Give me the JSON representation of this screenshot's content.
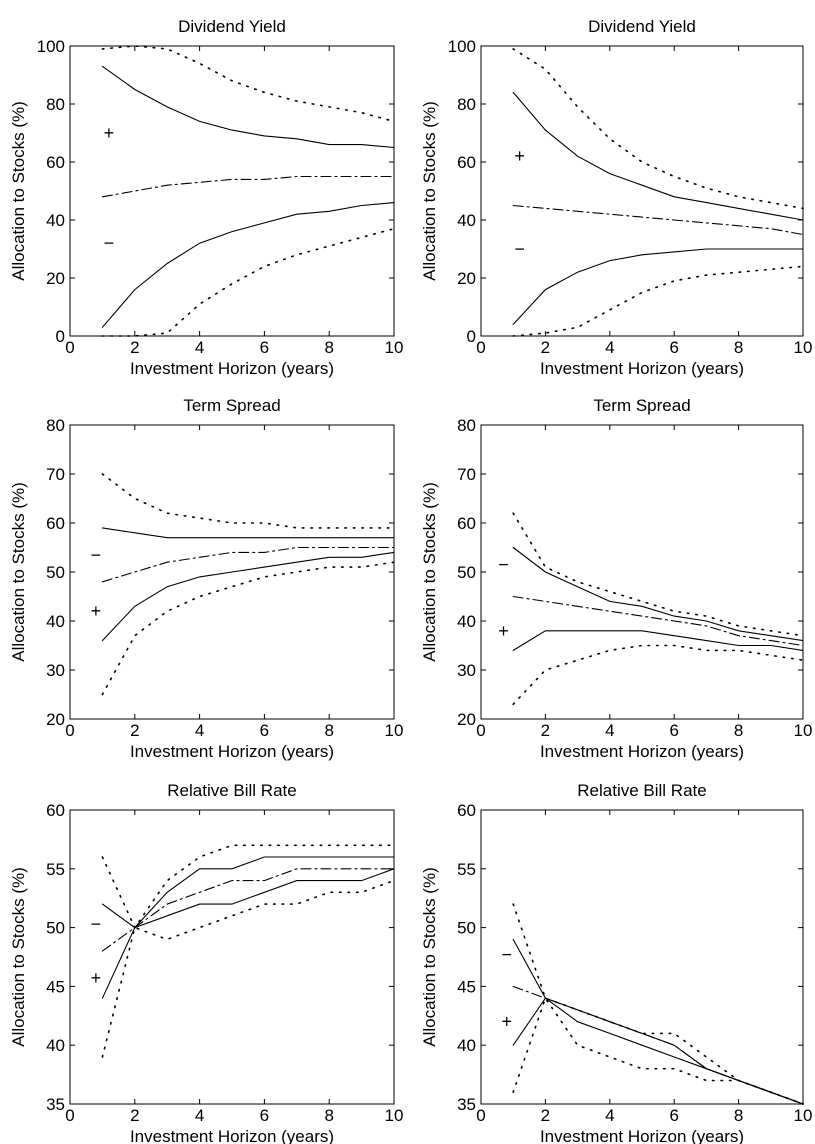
{
  "chart_data": [
    {
      "type": "line",
      "title": "Dividend Yield",
      "xlabel": "Investment Horizon (years)",
      "ylabel": "Allocation to Stocks (%)",
      "xlim": [
        0,
        10
      ],
      "ylim": [
        0,
        100
      ],
      "xticks": [
        0,
        2,
        4,
        6,
        8,
        10
      ],
      "yticks": [
        0,
        20,
        40,
        60,
        80,
        100
      ],
      "x": [
        1,
        2,
        3,
        4,
        5,
        6,
        7,
        8,
        9,
        10
      ],
      "series": [
        {
          "style": "solid",
          "values": [
            93,
            85,
            79,
            74,
            71,
            69,
            68,
            66,
            66,
            65
          ]
        },
        {
          "style": "solid",
          "values": [
            3,
            16,
            25,
            32,
            36,
            39,
            42,
            43,
            45,
            46
          ]
        },
        {
          "style": "dashdot",
          "values": [
            48,
            50,
            52,
            53,
            54,
            54,
            55,
            55,
            55,
            55
          ]
        },
        {
          "style": "dotted",
          "values": [
            99,
            100,
            99,
            94,
            88,
            84,
            81,
            79,
            77,
            74
          ]
        },
        {
          "style": "dotted",
          "values": [
            0,
            0,
            1,
            11,
            18,
            24,
            28,
            31,
            34,
            37
          ]
        }
      ],
      "markers": [
        {
          "text": "+",
          "x": 1.2,
          "y": 70
        },
        {
          "text": "−",
          "x": 1.2,
          "y": 32
        }
      ]
    },
    {
      "type": "line",
      "title": "Dividend Yield",
      "xlabel": "Investment Horizon (years)",
      "ylabel": "Allocation to Stocks (%)",
      "xlim": [
        0,
        10
      ],
      "ylim": [
        0,
        100
      ],
      "xticks": [
        0,
        2,
        4,
        6,
        8,
        10
      ],
      "yticks": [
        0,
        20,
        40,
        60,
        80,
        100
      ],
      "x": [
        1,
        2,
        3,
        4,
        5,
        6,
        7,
        8,
        9,
        10
      ],
      "series": [
        {
          "style": "solid",
          "values": [
            84,
            71,
            62,
            56,
            52,
            48,
            46,
            44,
            42,
            40
          ]
        },
        {
          "style": "solid",
          "values": [
            4,
            16,
            22,
            26,
            28,
            29,
            30,
            30,
            30,
            30
          ]
        },
        {
          "style": "dashdot",
          "values": [
            45,
            44,
            43,
            42,
            41,
            40,
            39,
            38,
            37,
            35
          ]
        },
        {
          "style": "dotted",
          "values": [
            99,
            92,
            79,
            68,
            60,
            55,
            51,
            48,
            46,
            44
          ]
        },
        {
          "style": "dotted",
          "values": [
            0,
            1,
            3,
            9,
            15,
            19,
            21,
            22,
            23,
            24
          ]
        }
      ],
      "markers": [
        {
          "text": "+",
          "x": 1.2,
          "y": 62
        },
        {
          "text": "−",
          "x": 1.2,
          "y": 30
        }
      ]
    },
    {
      "type": "line",
      "title": "Term Spread",
      "xlabel": "Investment Horizon (years)",
      "ylabel": "Allocation to Stocks (%)",
      "xlim": [
        0,
        10
      ],
      "ylim": [
        20,
        80
      ],
      "xticks": [
        0,
        2,
        4,
        6,
        8,
        10
      ],
      "yticks": [
        20,
        30,
        40,
        50,
        60,
        70,
        80
      ],
      "x": [
        1,
        2,
        3,
        4,
        5,
        6,
        7,
        8,
        9,
        10
      ],
      "series": [
        {
          "style": "solid",
          "values": [
            59,
            58,
            57,
            57,
            57,
            57,
            57,
            57,
            57,
            57
          ]
        },
        {
          "style": "solid",
          "values": [
            36,
            43,
            47,
            49,
            50,
            51,
            52,
            53,
            53,
            54
          ]
        },
        {
          "style": "dashdot",
          "values": [
            48,
            50,
            52,
            53,
            54,
            54,
            55,
            55,
            55,
            55
          ]
        },
        {
          "style": "dotted",
          "values": [
            70,
            65,
            62,
            61,
            60,
            60,
            59,
            59,
            59,
            59
          ]
        },
        {
          "style": "dotted",
          "values": [
            25,
            37,
            42,
            45,
            47,
            49,
            50,
            51,
            51,
            52
          ]
        }
      ],
      "markers": [
        {
          "text": "−",
          "x": 0.8,
          "y": 53.5
        },
        {
          "text": "+",
          "x": 0.8,
          "y": 42
        }
      ]
    },
    {
      "type": "line",
      "title": "Term Spread",
      "xlabel": "Investment Horizon (years)",
      "ylabel": "Allocation to Stocks (%)",
      "xlim": [
        0,
        10
      ],
      "ylim": [
        20,
        80
      ],
      "xticks": [
        0,
        2,
        4,
        6,
        8,
        10
      ],
      "yticks": [
        20,
        30,
        40,
        50,
        60,
        70,
        80
      ],
      "x": [
        1,
        2,
        3,
        4,
        5,
        6,
        7,
        8,
        9,
        10
      ],
      "series": [
        {
          "style": "solid",
          "values": [
            55,
            50,
            47,
            44,
            43,
            41,
            40,
            38,
            37,
            36
          ]
        },
        {
          "style": "solid",
          "values": [
            34,
            38,
            38,
            38,
            38,
            37,
            36,
            35,
            35,
            34
          ]
        },
        {
          "style": "dashdot",
          "values": [
            45,
            44,
            43,
            42,
            41,
            40,
            39,
            37,
            36,
            35
          ]
        },
        {
          "style": "dotted",
          "values": [
            62,
            51,
            48,
            46,
            44,
            42,
            41,
            39,
            38,
            37
          ]
        },
        {
          "style": "dotted",
          "values": [
            23,
            30,
            32,
            34,
            35,
            35,
            34,
            34,
            33,
            32
          ]
        }
      ],
      "markers": [
        {
          "text": "−",
          "x": 0.7,
          "y": 51.5
        },
        {
          "text": "+",
          "x": 0.7,
          "y": 38
        }
      ]
    },
    {
      "type": "line",
      "title": "Relative Bill Rate",
      "xlabel": "Investment Horizon (years)",
      "ylabel": "Allocation to Stocks (%)",
      "xlim": [
        0,
        10
      ],
      "ylim": [
        35,
        60
      ],
      "xticks": [
        0,
        2,
        4,
        6,
        8,
        10
      ],
      "yticks": [
        35,
        40,
        45,
        50,
        55,
        60
      ],
      "x": [
        1,
        2,
        3,
        4,
        5,
        6,
        7,
        8,
        9,
        10
      ],
      "series": [
        {
          "style": "solid",
          "values": [
            44,
            50,
            53,
            55,
            55,
            56,
            56,
            56,
            56,
            56
          ]
        },
        {
          "style": "solid",
          "values": [
            52,
            50,
            51,
            52,
            52,
            53,
            54,
            54,
            54,
            55
          ]
        },
        {
          "style": "dashdot",
          "values": [
            48,
            50,
            52,
            53,
            54,
            54,
            55,
            55,
            55,
            55
          ]
        },
        {
          "style": "dotted",
          "values": [
            56,
            50,
            54,
            56,
            57,
            57,
            57,
            57,
            57,
            57
          ]
        },
        {
          "style": "dotted",
          "values": [
            39,
            50,
            49,
            50,
            51,
            52,
            52,
            53,
            53,
            54
          ]
        }
      ],
      "markers": [
        {
          "text": "−",
          "x": 0.8,
          "y": 50.3
        },
        {
          "text": "+",
          "x": 0.8,
          "y": 45.7
        }
      ]
    },
    {
      "type": "line",
      "title": "Relative Bill Rate",
      "xlabel": "Investment Horizon (years)",
      "ylabel": "Allocation to Stocks (%)",
      "xlim": [
        0,
        10
      ],
      "ylim": [
        35,
        60
      ],
      "xticks": [
        0,
        2,
        4,
        6,
        8,
        10
      ],
      "yticks": [
        35,
        40,
        45,
        50,
        55,
        60
      ],
      "x": [
        1,
        2,
        3,
        4,
        5,
        6,
        7,
        8,
        9,
        10
      ],
      "series": [
        {
          "style": "solid",
          "values": [
            49,
            44,
            43,
            42,
            41,
            40,
            38,
            37,
            36,
            35
          ]
        },
        {
          "style": "solid",
          "values": [
            40,
            44,
            42,
            41,
            40,
            39,
            38,
            37,
            36,
            35
          ]
        },
        {
          "style": "dashdot",
          "values": [
            45,
            44,
            43,
            42,
            41,
            40,
            38,
            37,
            36,
            35
          ]
        },
        {
          "style": "dotted",
          "values": [
            52,
            44,
            43,
            42,
            41,
            41,
            39,
            37,
            36,
            35
          ]
        },
        {
          "style": "dotted",
          "values": [
            36,
            44,
            40,
            39,
            38,
            38,
            37,
            37,
            36,
            35
          ]
        }
      ],
      "markers": [
        {
          "text": "−",
          "x": 0.8,
          "y": 47.7
        },
        {
          "text": "+",
          "x": 0.8,
          "y": 42
        }
      ]
    }
  ]
}
